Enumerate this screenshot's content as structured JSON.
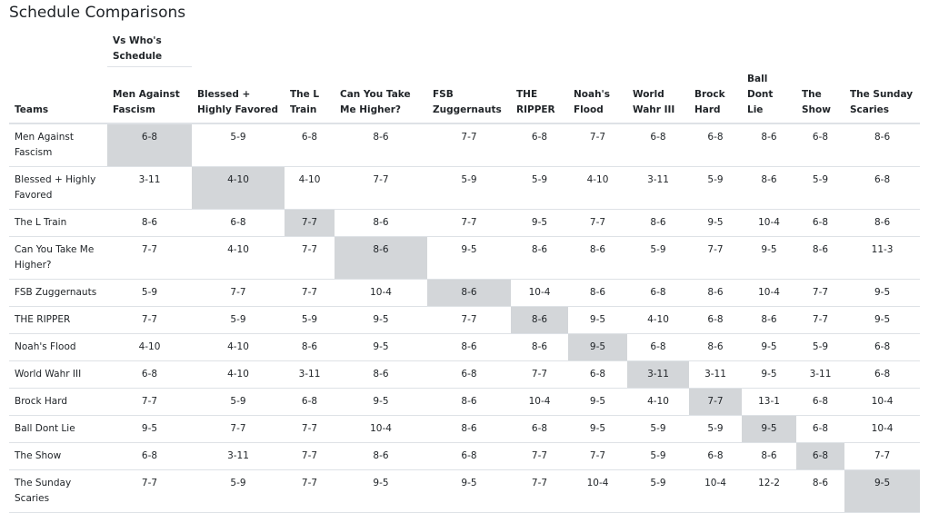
{
  "title": "Schedule Comparisons",
  "header": {
    "group_label": "Vs Who's Schedule",
    "teams_label": "Teams",
    "columns": [
      "Men Against Fascism",
      "Blessed + Highly Favored",
      "The L Train",
      "Can You Take Me Higher?",
      "FSB Zuggernauts",
      "THE RIPPER",
      "Noah's Flood",
      "World Wahr III",
      "Brock Hard",
      "Ball Dont Lie",
      "The Show",
      "The Sunday Scaries"
    ]
  },
  "highlight_color": "#d3d6d9",
  "rows": [
    {
      "team": "Men Against Fascism",
      "values": [
        "6-8",
        "5-9",
        "6-8",
        "8-6",
        "7-7",
        "6-8",
        "7-7",
        "6-8",
        "6-8",
        "8-6",
        "6-8",
        "8-6"
      ]
    },
    {
      "team": "Blessed + Highly Favored",
      "values": [
        "3-11",
        "4-10",
        "4-10",
        "7-7",
        "5-9",
        "5-9",
        "4-10",
        "3-11",
        "5-9",
        "8-6",
        "5-9",
        "6-8"
      ]
    },
    {
      "team": "The L Train",
      "values": [
        "8-6",
        "6-8",
        "7-7",
        "8-6",
        "7-7",
        "9-5",
        "7-7",
        "8-6",
        "9-5",
        "10-4",
        "6-8",
        "8-6"
      ]
    },
    {
      "team": "Can You Take Me Higher?",
      "values": [
        "7-7",
        "4-10",
        "7-7",
        "8-6",
        "9-5",
        "8-6",
        "8-6",
        "5-9",
        "7-7",
        "9-5",
        "8-6",
        "11-3"
      ]
    },
    {
      "team": "FSB Zuggernauts",
      "values": [
        "5-9",
        "7-7",
        "7-7",
        "10-4",
        "8-6",
        "10-4",
        "8-6",
        "6-8",
        "8-6",
        "10-4",
        "7-7",
        "9-5"
      ]
    },
    {
      "team": "THE RIPPER",
      "values": [
        "7-7",
        "5-9",
        "5-9",
        "9-5",
        "7-7",
        "8-6",
        "9-5",
        "4-10",
        "6-8",
        "8-6",
        "7-7",
        "9-5"
      ]
    },
    {
      "team": "Noah's Flood",
      "values": [
        "4-10",
        "4-10",
        "8-6",
        "9-5",
        "8-6",
        "8-6",
        "9-5",
        "6-8",
        "8-6",
        "9-5",
        "5-9",
        "6-8"
      ]
    },
    {
      "team": "World Wahr III",
      "values": [
        "6-8",
        "4-10",
        "3-11",
        "8-6",
        "6-8",
        "7-7",
        "6-8",
        "3-11",
        "3-11",
        "9-5",
        "3-11",
        "6-8"
      ]
    },
    {
      "team": "Brock Hard",
      "values": [
        "7-7",
        "5-9",
        "6-8",
        "9-5",
        "8-6",
        "10-4",
        "9-5",
        "4-10",
        "7-7",
        "13-1",
        "6-8",
        "10-4"
      ]
    },
    {
      "team": "Ball Dont Lie",
      "values": [
        "9-5",
        "7-7",
        "7-7",
        "10-4",
        "8-6",
        "6-8",
        "9-5",
        "5-9",
        "5-9",
        "9-5",
        "6-8",
        "10-4"
      ]
    },
    {
      "team": "The Show",
      "values": [
        "6-8",
        "3-11",
        "7-7",
        "8-6",
        "6-8",
        "7-7",
        "7-7",
        "5-9",
        "6-8",
        "8-6",
        "6-8",
        "7-7"
      ]
    },
    {
      "team": "The Sunday Scaries",
      "values": [
        "7-7",
        "5-9",
        "7-7",
        "9-5",
        "9-5",
        "7-7",
        "10-4",
        "5-9",
        "10-4",
        "12-2",
        "8-6",
        "9-5"
      ]
    }
  ]
}
